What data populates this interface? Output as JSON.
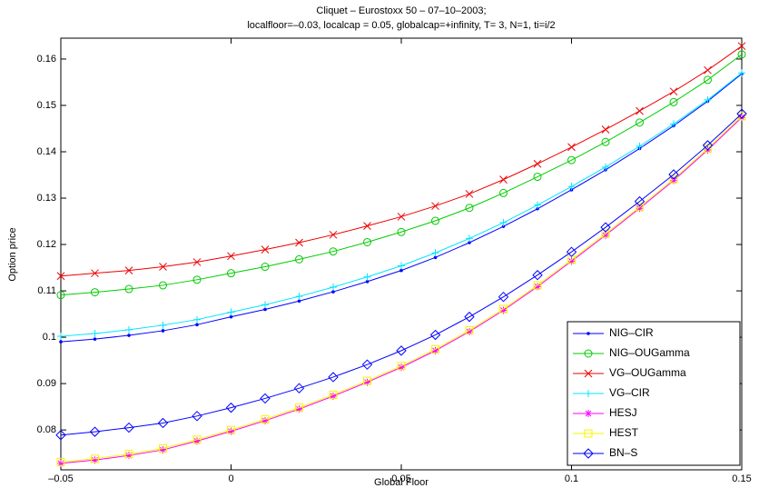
{
  "chart_data": {
    "type": "line",
    "title": "Cliquet – Eurostoxx 50 – 07–10–2003;",
    "subtitle": "localfloor=–0.03, localcap = 0.05, globalcap=+infinity, T= 3, N=1, ti=i/2",
    "x_label": "Global Floor",
    "y_label": "Option price",
    "x": [
      -0.05,
      -0.04,
      -0.03,
      -0.02,
      -0.01,
      0,
      0.01,
      0.02,
      0.03,
      0.04,
      0.05,
      0.06,
      0.07,
      0.08,
      0.09,
      0.1,
      0.11,
      0.12,
      0.13,
      0.14,
      0.15
    ],
    "xlim": [
      -0.05,
      0.15
    ],
    "xticks": [
      {
        "value": -0.05,
        "label": "–0.05"
      },
      0,
      0.05,
      0.1,
      0.15
    ],
    "ylim": [
      0.0714,
      0.1645
    ],
    "yticks": [
      0.08,
      0.09,
      0.1,
      0.11,
      0.12,
      0.13,
      0.14,
      0.15,
      0.16
    ],
    "legend": "lower right",
    "series": [
      {
        "name": "NIG–CIR",
        "color": "#0000ff",
        "marker": "dot",
        "values": [
          0.099,
          0.0996,
          0.1004,
          0.1014,
          0.1027,
          0.1044,
          0.106,
          0.1078,
          0.1098,
          0.112,
          0.1144,
          0.1172,
          0.1204,
          0.1239,
          0.1277,
          0.1318,
          0.1361,
          0.1407,
          0.1456,
          0.1509,
          0.1568
        ]
      },
      {
        "name": "NIG–OUGamma",
        "color": "#00cc00",
        "marker": "circle",
        "values": [
          0.1091,
          0.1097,
          0.1104,
          0.1112,
          0.1124,
          0.1138,
          0.1152,
          0.1168,
          0.1185,
          0.1205,
          0.1227,
          0.1251,
          0.1279,
          0.1311,
          0.1346,
          0.1382,
          0.1421,
          0.1463,
          0.1507,
          0.1555,
          0.161
        ]
      },
      {
        "name": "VG–OUGamma",
        "color": "#ee0000",
        "marker": "x",
        "values": [
          0.1132,
          0.1138,
          0.1144,
          0.1152,
          0.1162,
          0.1175,
          0.1189,
          0.1204,
          0.1221,
          0.124,
          0.126,
          0.1283,
          0.1309,
          0.134,
          0.1374,
          0.141,
          0.1448,
          0.1488,
          0.153,
          0.1576,
          0.1628
        ]
      },
      {
        "name": "VG–CIR",
        "color": "#00e5ff",
        "marker": "plus",
        "values": [
          0.1002,
          0.1008,
          0.1016,
          0.1026,
          0.1038,
          0.1054,
          0.107,
          0.1088,
          0.1108,
          0.113,
          0.1154,
          0.1182,
          0.1213,
          0.1247,
          0.1285,
          0.1325,
          0.1367,
          0.1412,
          0.146,
          0.1512,
          0.157
        ]
      },
      {
        "name": "HESJ",
        "color": "#ff00ff",
        "marker": "star",
        "values": [
          0.0728,
          0.0735,
          0.0745,
          0.0757,
          0.0776,
          0.0797,
          0.082,
          0.0845,
          0.0873,
          0.0903,
          0.0935,
          0.0971,
          0.1012,
          0.1058,
          0.1109,
          0.1164,
          0.122,
          0.1278,
          0.1338,
          0.1404,
          0.1474
        ]
      },
      {
        "name": "HEST",
        "color": "#f5f500",
        "marker": "square",
        "values": [
          0.0731,
          0.0738,
          0.0748,
          0.076,
          0.0779,
          0.08,
          0.0823,
          0.0848,
          0.0876,
          0.0906,
          0.0938,
          0.0974,
          0.1015,
          0.1061,
          0.1112,
          0.1167,
          0.1223,
          0.1281,
          0.1341,
          0.1407,
          0.1477
        ]
      },
      {
        "name": "BN–S",
        "color": "#0000ff",
        "marker": "diamond",
        "values": [
          0.0789,
          0.0796,
          0.0805,
          0.0815,
          0.083,
          0.0848,
          0.0868,
          0.089,
          0.0914,
          0.0941,
          0.0971,
          0.1005,
          0.1044,
          0.1087,
          0.1134,
          0.1184,
          0.1237,
          0.1293,
          0.1351,
          0.1414,
          0.1482
        ]
      }
    ]
  }
}
